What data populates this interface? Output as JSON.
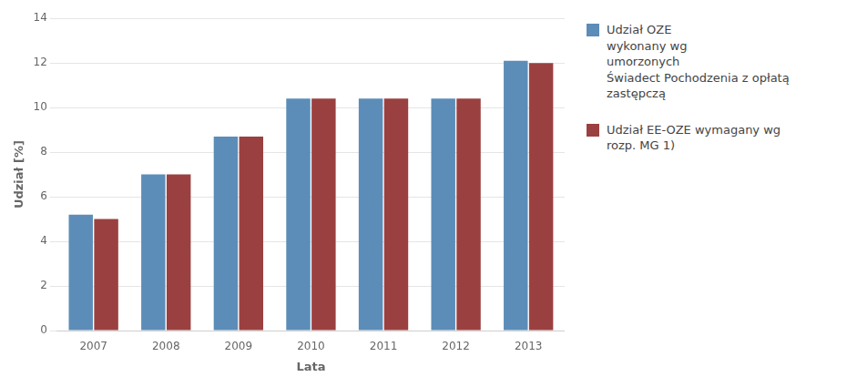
{
  "chart_data": {
    "type": "bar",
    "xlabel": "Lata",
    "ylabel": "Udział [%]",
    "categories": [
      2007,
      2008,
      2009,
      2010,
      2011,
      2012,
      2013
    ],
    "series": [
      {
        "name": "Udział OZE\nwykonany wg\numorzonych\nŚwiadect Pochodzenia z opłatą\nzastępczą",
        "color": "#5B8DB8",
        "values": [
          5.2,
          7.0,
          8.7,
          10.4,
          10.4,
          10.4,
          12.1
        ]
      },
      {
        "name": "Udział EE-OZE wymagany wg\nrozp. MG 1)",
        "color": "#9B4040",
        "values": [
          5.0,
          7.0,
          8.7,
          10.4,
          10.4,
          10.4,
          12.0
        ]
      }
    ],
    "ylim": [
      0,
      14
    ],
    "yticks": [
      0,
      2,
      4,
      6,
      8,
      10,
      12,
      14
    ],
    "grid": true,
    "legend": "right"
  }
}
